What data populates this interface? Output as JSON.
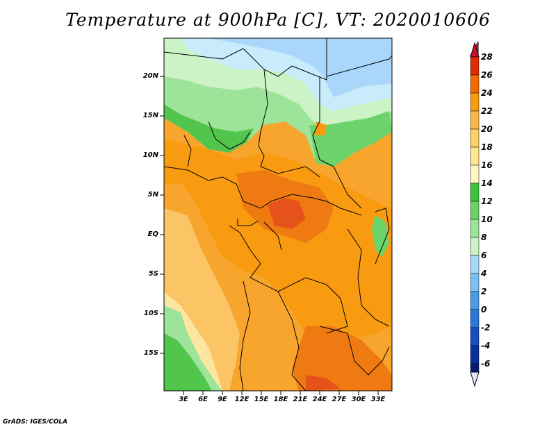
{
  "title": "Temperature at 900hPa [C], VT: 2020010606",
  "credit": "GrADS: IGES/COLA",
  "map": {
    "lon_labels": [
      "3E",
      "6E",
      "9E",
      "12E",
      "15E",
      "18E",
      "21E",
      "24E",
      "27E",
      "30E",
      "33E"
    ],
    "lat_labels": [
      "20N",
      "15N",
      "10N",
      "5N",
      "EQ",
      "5S",
      "10S",
      "15S"
    ]
  },
  "colorbar": {
    "labels": [
      "28",
      "26",
      "24",
      "22",
      "20",
      "18",
      "16",
      "14",
      "12",
      "10",
      "8",
      "6",
      "4",
      "2",
      "0",
      "-2",
      "-4",
      "-6"
    ],
    "colors": [
      "#a50000",
      "#e02a00",
      "#f26a00",
      "#f99b10",
      "#fbb847",
      "#ffd770",
      "#fff0a8",
      "#3cc23c",
      "#6cd26a",
      "#9ee39a",
      "#cbf3c6",
      "#a6d8f8",
      "#7cc0f2",
      "#4b9ce8",
      "#2a78dc",
      "#1650c4",
      "#0a309e",
      "#071e6e"
    ]
  },
  "colors": {
    "land_base": "#f7a52c",
    "hot": "#f07a12",
    "hottest": "#e5521a",
    "cool_green": "#52c64c",
    "light_green": "#9ee39a",
    "pale": "#d6f5d2",
    "blue": "#a9d6fa",
    "light_blue": "#c8ecfb",
    "warm_yellow": "#fbc465",
    "pale_yellow": "#fde7a0"
  }
}
